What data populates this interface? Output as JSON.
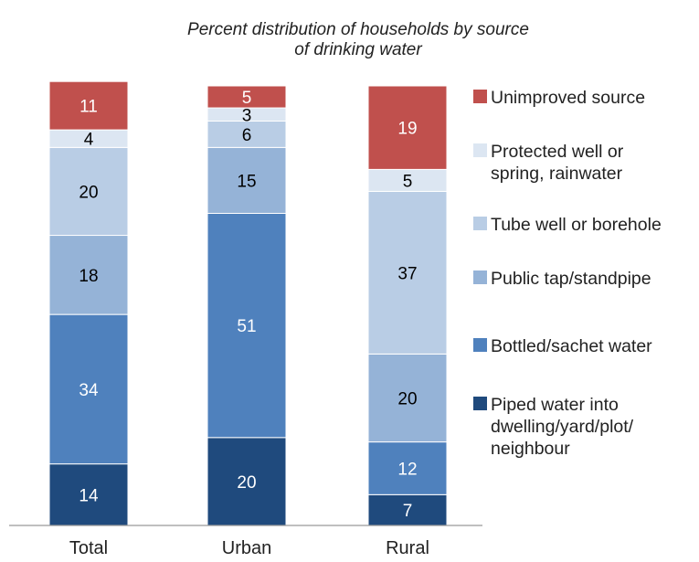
{
  "chart_data": {
    "type": "bar",
    "stacked": true,
    "title": "Percent distribution of households by source of drinking water",
    "title_lines": [
      "Percent distribution of households by source",
      "of drinking water"
    ],
    "categories": [
      "Total",
      "Urban",
      "Rural"
    ],
    "ylim": [
      0,
      100
    ],
    "grid": false,
    "legend_position": "right",
    "series": [
      {
        "name": "Piped water into dwelling/yard/plot/ neighbour",
        "legend_lines": [
          "Piped water into",
          "dwelling/yard/plot/",
          "neighbour"
        ],
        "color": "#1f4a7d",
        "label_color": "#ffffff",
        "values": [
          14,
          20,
          7
        ]
      },
      {
        "name": "Bottled/sachet water",
        "legend_lines": [
          "Bottled/sachet water"
        ],
        "color": "#4f81bd",
        "label_color": "#ffffff",
        "values": [
          34,
          51,
          12
        ]
      },
      {
        "name": "Public tap/standpipe",
        "legend_lines": [
          "Public tap/standpipe"
        ],
        "color": "#95b3d7",
        "label_color": "#000000",
        "values": [
          18,
          15,
          20
        ]
      },
      {
        "name": "Tube well or borehole",
        "legend_lines": [
          "Tube well or borehole"
        ],
        "color": "#b9cde5",
        "label_color": "#000000",
        "values": [
          20,
          6,
          37
        ]
      },
      {
        "name": "Protected well or spring, rainwater",
        "legend_lines": [
          "Protected well or",
          "spring, rainwater"
        ],
        "color": "#dce6f2",
        "label_color": "#000000",
        "values": [
          4,
          3,
          5
        ]
      },
      {
        "name": "Unimproved source",
        "legend_lines": [
          "Unimproved source"
        ],
        "color": "#c0504d",
        "label_color": "#ffffff",
        "values": [
          11,
          5,
          19
        ]
      }
    ]
  }
}
